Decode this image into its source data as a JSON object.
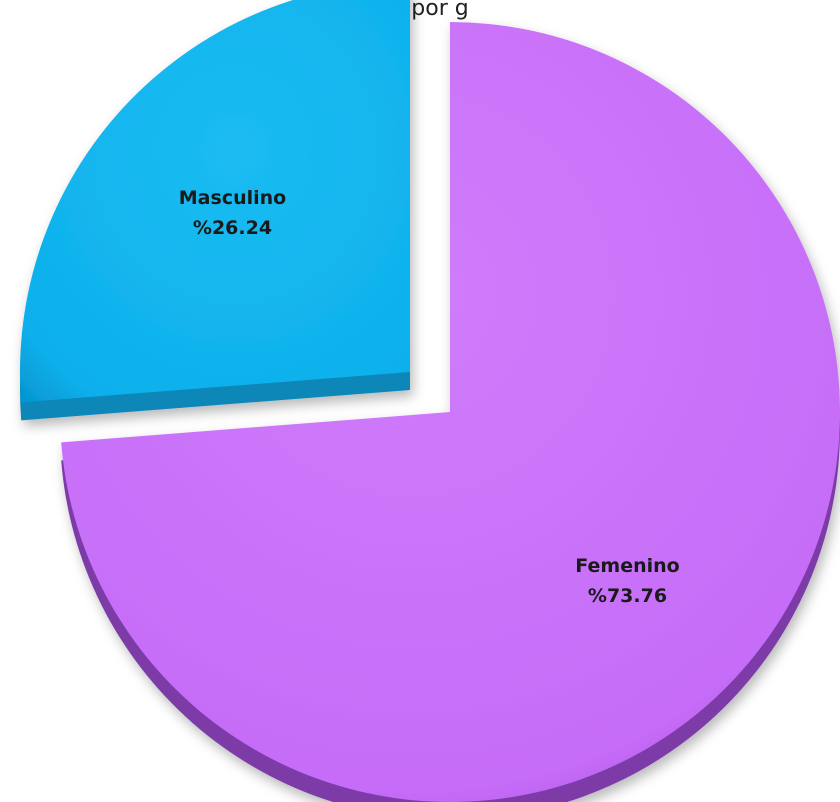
{
  "chart_data": {
    "type": "pie",
    "title_fragment": "por   g",
    "slices": [
      {
        "name": "Femenino",
        "value": 73.76,
        "value_label": "%73.76",
        "color": "#c56cf8",
        "side_color": "#7d3aa8"
      },
      {
        "name": "Masculino",
        "value": 26.24,
        "value_label": "%26.24",
        "color": "#0db0ec",
        "side_color": "#0a86b8",
        "exploded": true
      }
    ],
    "style": "3d-exploded",
    "legend": "none"
  }
}
